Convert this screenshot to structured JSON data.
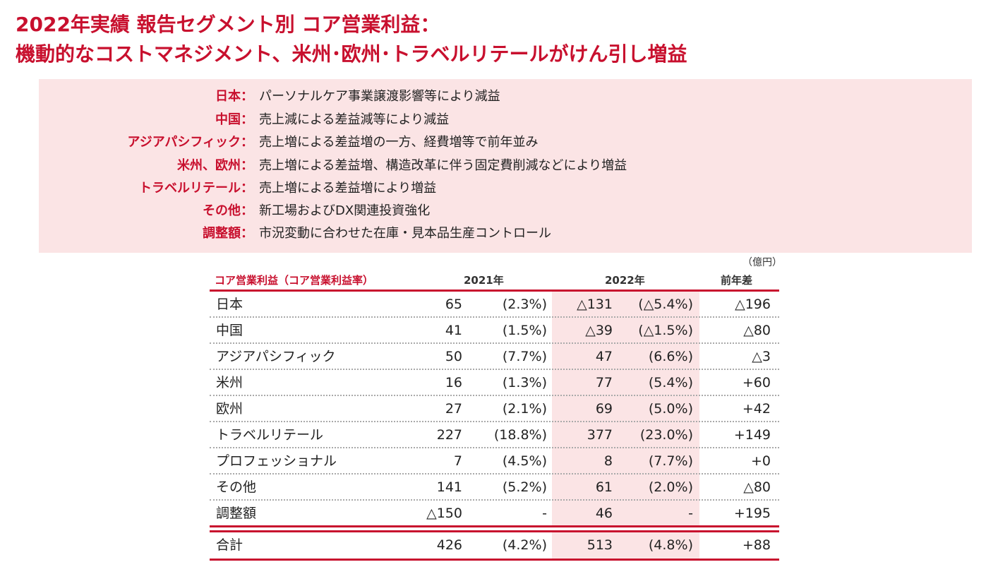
{
  "title": {
    "line1": "2022年実績 報告セグメント別 コア営業利益：",
    "line2": "機動的なコストマネジメント、米州･欧州･トラベルリテールがけん引し増益"
  },
  "summary": [
    {
      "label": "日本",
      "text": "パーソナルケア事業譲渡影響等により減益"
    },
    {
      "label": "中国",
      "text": "売上減による差益減等により減益"
    },
    {
      "label": "アジアパシフィック",
      "text": "売上増による差益増の一方、経費増等で前年並み"
    },
    {
      "label": "米州、欧州",
      "text": "売上増による差益増、構造改革に伴う固定費削減などにより増益"
    },
    {
      "label": "トラベルリテール",
      "text": "売上増による差益増により増益"
    },
    {
      "label": "その他",
      "text": "新工場およびDX関連投資強化"
    },
    {
      "label": "調整額",
      "text": "市況変動に合わせた在庫・見本品生産コントロール"
    }
  ],
  "summary_colon": "：",
  "table": {
    "unit": "（億円）",
    "header_label": "コア営業利益（コア営業利益率）",
    "col_2021": "2021年",
    "col_2022": "2022年",
    "col_diff": "前年差",
    "rows": [
      {
        "name": "日本",
        "v2021": "65",
        "p2021": "(2.3%)",
        "v2022": "△131",
        "p2022": "(△5.4%)",
        "diff": "△196"
      },
      {
        "name": "中国",
        "v2021": "41",
        "p2021": "(1.5%)",
        "v2022": "△39",
        "p2022": "(△1.5%)",
        "diff": "△80"
      },
      {
        "name": "アジアパシフィック",
        "v2021": "50",
        "p2021": "(7.7%)",
        "v2022": "47",
        "p2022": "(6.6%)",
        "diff": "△3"
      },
      {
        "name": "米州",
        "v2021": "16",
        "p2021": "(1.3%)",
        "v2022": "77",
        "p2022": "(5.4%)",
        "diff": "+60"
      },
      {
        "name": "欧州",
        "v2021": "27",
        "p2021": "(2.1%)",
        "v2022": "69",
        "p2022": "(5.0%)",
        "diff": "+42"
      },
      {
        "name": "トラベルリテール",
        "v2021": "227",
        "p2021": "(18.8%)",
        "v2022": "377",
        "p2022": "(23.0%)",
        "diff": "+149"
      },
      {
        "name": "プロフェッショナル",
        "v2021": "7",
        "p2021": "(4.5%)",
        "v2022": "8",
        "p2022": "(7.7%)",
        "diff": "+0"
      },
      {
        "name": "その他",
        "v2021": "141",
        "p2021": "(5.2%)",
        "v2022": "61",
        "p2022": "(2.0%)",
        "diff": "△80"
      },
      {
        "name": "調整額",
        "v2021": "△150",
        "p2021": "-",
        "v2022": "46",
        "p2022": "-",
        "diff": "+195"
      }
    ],
    "total": {
      "name": "合計",
      "v2021": "426",
      "p2021": "(4.2%)",
      "v2022": "513",
      "p2022": "(4.8%)",
      "diff": "+88"
    }
  }
}
